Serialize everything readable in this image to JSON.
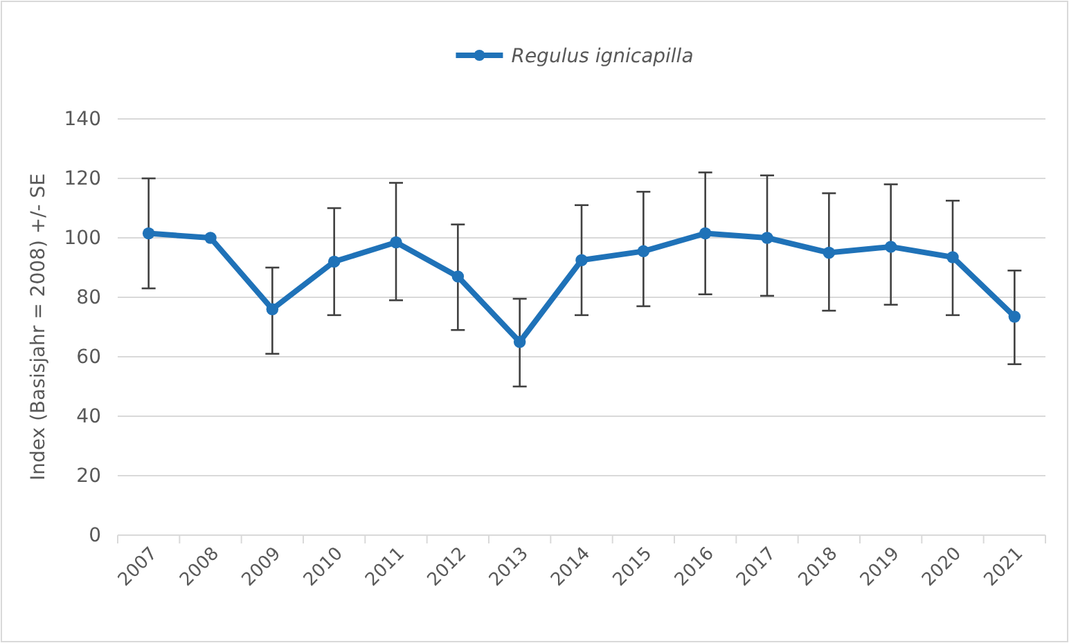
{
  "chart_data": {
    "type": "line",
    "ylabel": "Index (Basisjahr  = 2008) +/- SE",
    "categories": [
      "2007",
      "2008",
      "2009",
      "2010",
      "2011",
      "2012",
      "2013",
      "2014",
      "2015",
      "2016",
      "2017",
      "2018",
      "2019",
      "2020",
      "2021"
    ],
    "series": [
      {
        "name": "Regulus ignicapilla",
        "color": "#1f72b8",
        "values": [
          101.5,
          100,
          76,
          92,
          98.5,
          87,
          65,
          92.5,
          95.5,
          101.5,
          100,
          95,
          97,
          93.5,
          73.5
        ],
        "errors": [
          [
            83,
            120
          ],
          null,
          [
            61,
            90
          ],
          [
            74,
            110
          ],
          [
            79,
            118.5
          ],
          [
            69,
            104.5
          ],
          [
            50,
            79.5
          ],
          [
            74,
            111
          ],
          [
            77,
            115.5
          ],
          [
            81,
            122
          ],
          [
            80.5,
            121
          ],
          [
            75.5,
            115
          ],
          [
            77.5,
            118
          ],
          [
            74,
            112.5
          ],
          [
            57.5,
            89
          ]
        ]
      }
    ],
    "ylim": [
      0,
      140
    ],
    "yticks": [
      0,
      20,
      40,
      60,
      80,
      100,
      120,
      140
    ],
    "grid": "y",
    "legend": "top",
    "marker": "circle",
    "line_style": "solid"
  }
}
